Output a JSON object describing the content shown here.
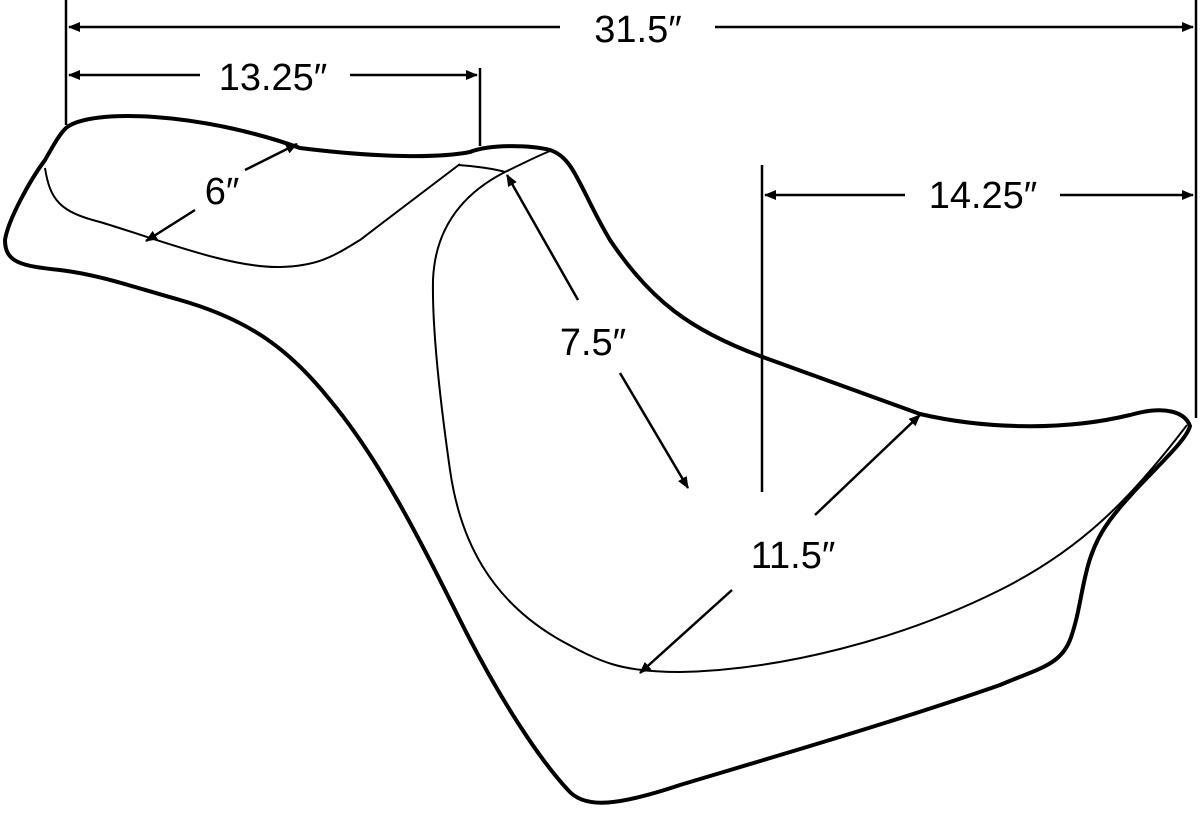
{
  "diagram": {
    "subject": "motorcycle two-up seat dimension drawing",
    "line_color": "#000000",
    "background": "#ffffff",
    "dimensions": {
      "overall_length": "31.5″",
      "rear_seat_length": "13.25″",
      "rear_seat_width": "6″",
      "front_rise": "7.5″",
      "front_seat_length": "14.25″",
      "front_seat_width": "11.5″"
    }
  }
}
